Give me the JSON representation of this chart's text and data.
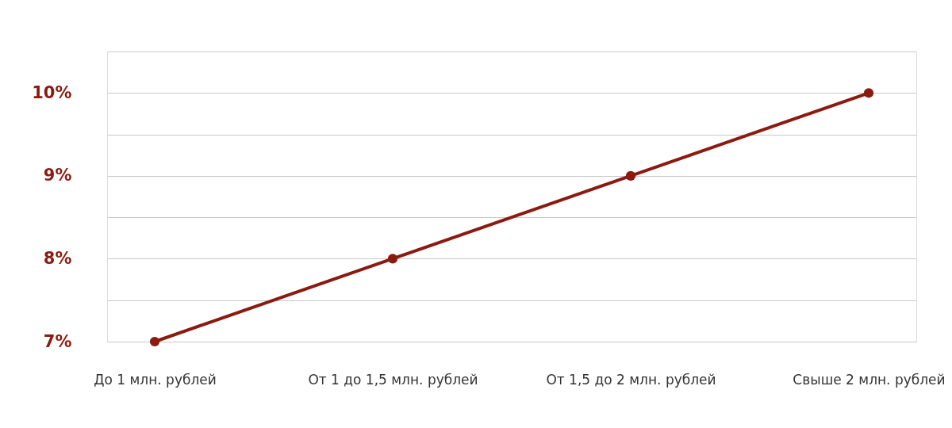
{
  "chart_data": {
    "type": "line",
    "categories": [
      "До 1 млн. рублей",
      "От 1 до 1,5 млн. рублей",
      "От 1,5 до 2 млн. рублей",
      "Свыше 2 млн. рублей"
    ],
    "series": [
      {
        "color": "#8b1a10",
        "values": [
          7,
          8,
          9,
          10
        ]
      }
    ],
    "ylim": [
      7,
      10.5
    ],
    "yticks": [
      {
        "value": 7,
        "label": "7%"
      },
      {
        "value": 7.5,
        "label": null
      },
      {
        "value": 8,
        "label": "8%"
      },
      {
        "value": 8.5,
        "label": null
      },
      {
        "value": 9,
        "label": "9%"
      },
      {
        "value": 9.5,
        "label": null
      },
      {
        "value": 10,
        "label": "10%"
      },
      {
        "value": 10.5,
        "label": null
      }
    ],
    "grid": "y",
    "marker": "circle",
    "line_style": "solid"
  }
}
